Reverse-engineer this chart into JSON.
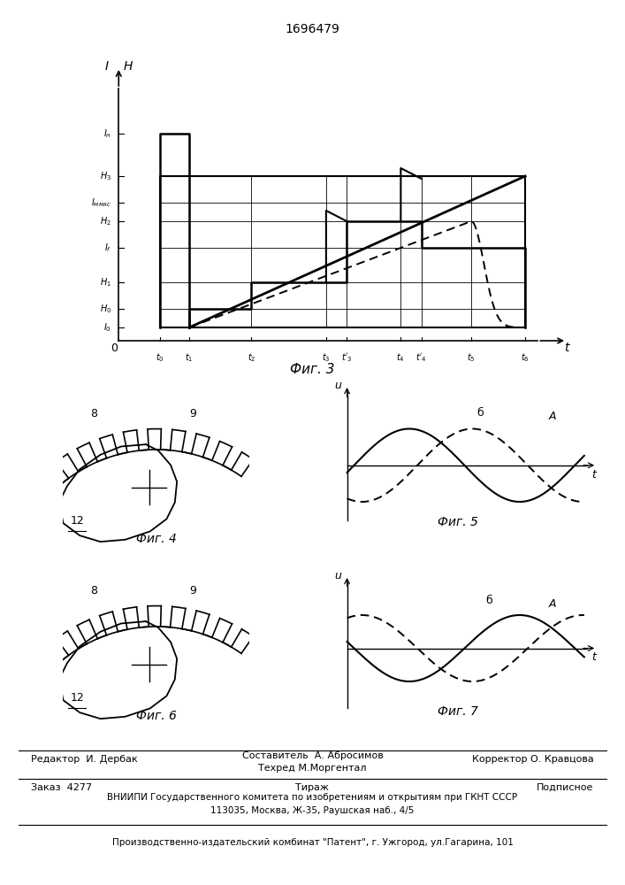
{
  "title": "1696479",
  "bg_color": "#ffffff",
  "fig3_label": "Фиг. 3",
  "fig4_label": "Фиг. 4",
  "fig5_label": "Фиг. 5",
  "fig6_label": "Фиг. 6",
  "fig7_label": "Фиг. 7",
  "footer_line1_left": "Редактор  И. Дербак",
  "footer_line1_right": "Корректор О. Кравцова",
  "footer_line2_left": "Заказ  4277",
  "footer_line2_center": "Тираж",
  "footer_line2_right": "Подписное",
  "footer_line3": "ВНИИПИ Государственного комитета по изобретениям и открытиям при ГКНТ СССР",
  "footer_line4": "113035, Москва, Ж-35, Раушская наб., 4/5",
  "footer_line5": "Производственно-издательский комбинат \"Патент\", г. Ужгород, ул.Гагарина, 101"
}
